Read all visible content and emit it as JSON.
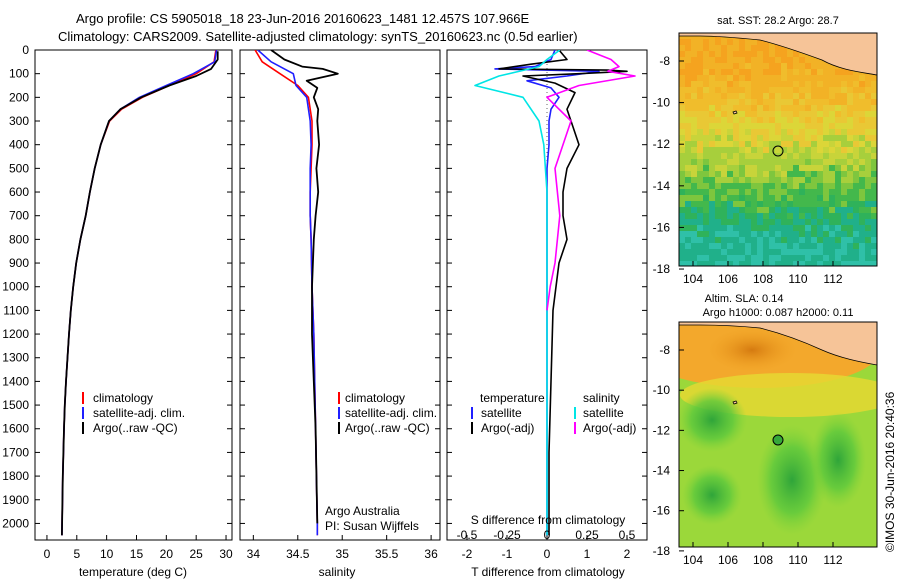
{
  "header": {
    "line1": "Argo profile: CS 5905018_18 23-Jun-2016 20160623_1481 12.457S 107.966E",
    "line2": "Climatology: CARS2009. Satellite-adjusted climatology: synTS_20160623.nc (0.5d earlier)"
  },
  "colors": {
    "climatology": "#ff0000",
    "satellite_clim": "#1f1fff",
    "argo": "#000000",
    "salinity_satellite": "#00e5e5",
    "salinity_argo": "#ff00ff",
    "land": "#f6c498"
  },
  "depth_axis": {
    "ticks": [
      "0",
      "100",
      "200",
      "300",
      "400",
      "500",
      "600",
      "700",
      "800",
      "900",
      "1000",
      "1100",
      "1200",
      "1300",
      "1400",
      "1500",
      "1600",
      "1700",
      "1800",
      "1900",
      "2000"
    ]
  },
  "temperature_panel": {
    "xlabel": "temperature (deg C)",
    "xticks": [
      "0",
      "5",
      "10",
      "15",
      "20",
      "25",
      "30"
    ],
    "legend": [
      "climatology",
      "satellite-adj. clim.",
      "Argo(..raw -QC)"
    ]
  },
  "salinity_panel": {
    "xlabel": "salinity",
    "xticks": [
      "34",
      "34.5",
      "35",
      "35.5",
      "36"
    ],
    "legend": [
      "climatology",
      "satellite-adj. clim.",
      "Argo(..raw -QC)"
    ],
    "credit1": "Argo Australia",
    "credit2": "PI: Susan Wijffels"
  },
  "difference_panel": {
    "xlabel": "T difference from climatology",
    "top_label": "S difference from climatology",
    "s_ticks": [
      "-0.5",
      "-0.25",
      "0",
      "0.25",
      "0.5"
    ],
    "t_ticks": [
      "-2",
      "-1",
      "0",
      "1",
      "2"
    ],
    "temperature_title": "temperature",
    "salinity_title": "salinity",
    "legend_satellite": "satellite",
    "legend_argo": "Argo(-adj)"
  },
  "sst_map": {
    "title": "sat. SST: 28.2 Argo: 28.7",
    "yticks": [
      "-8",
      "-10",
      "-12",
      "-14",
      "-16",
      "-18"
    ],
    "xticks": [
      "104",
      "106",
      "108",
      "110",
      "112"
    ]
  },
  "sla_map": {
    "title1": "Altim. SLA: 0.14",
    "title2": "Argo h1000: 0.087 h2000: 0.11",
    "yticks": [
      "-8",
      "-10",
      "-12",
      "-14",
      "-16",
      "-18"
    ],
    "xticks": [
      "104",
      "106",
      "108",
      "110",
      "112"
    ]
  },
  "footer": "©IMOS 30-Jun-2016 20:40:36",
  "chart_data": [
    {
      "type": "line",
      "title": "",
      "xlabel": "temperature (deg C)",
      "ylabel": "",
      "xlim": [
        -2,
        31
      ],
      "ylim": [
        2070,
        0
      ],
      "series": [
        {
          "name": "climatology",
          "x": [
            28.3,
            28.0,
            25.0,
            20.5,
            16.0,
            12.5,
            10.5,
            9.0,
            8.0,
            7.2,
            6.5,
            5.6,
            4.9,
            4.4,
            4.0,
            3.7,
            3.45,
            3.2,
            3.0,
            2.85,
            2.65,
            2.5
          ],
          "y": [
            0,
            50,
            100,
            150,
            200,
            250,
            300,
            400,
            500,
            600,
            700,
            800,
            900,
            1000,
            1100,
            1200,
            1300,
            1400,
            1500,
            1600,
            1800,
            2050
          ]
        },
        {
          "name": "satellite-adj. clim.",
          "x": [
            28.4,
            28.1,
            24.5,
            20.0,
            15.5,
            12.3,
            10.4,
            9.0,
            8.0,
            7.2,
            6.5,
            5.6,
            4.9,
            4.4,
            4.0,
            3.7,
            3.45,
            3.2,
            3.0,
            2.85,
            2.65,
            2.5
          ],
          "y": [
            0,
            50,
            100,
            150,
            200,
            250,
            300,
            400,
            500,
            600,
            700,
            800,
            900,
            1000,
            1100,
            1200,
            1300,
            1400,
            1500,
            1600,
            1800,
            2050
          ]
        },
        {
          "name": "Argo(..raw -QC)",
          "x": [
            28.6,
            28.6,
            27.5,
            25.0,
            20.5,
            15.8,
            12.3,
            10.4,
            9.0,
            8.0,
            7.2,
            6.5,
            5.6,
            4.9,
            4.4,
            4.0,
            3.7,
            3.45,
            3.2,
            3.0,
            2.85,
            2.65,
            2.5
          ],
          "y": [
            5,
            40,
            80,
            110,
            150,
            200,
            250,
            300,
            400,
            500,
            600,
            700,
            800,
            900,
            1000,
            1100,
            1200,
            1300,
            1400,
            1500,
            1600,
            1800,
            2050
          ]
        }
      ]
    },
    {
      "type": "line",
      "title": "",
      "xlabel": "salinity",
      "ylabel": "",
      "xlim": [
        33.85,
        36.1
      ],
      "ylim": [
        2070,
        0
      ],
      "series": [
        {
          "name": "climatology",
          "x": [
            34.02,
            34.1,
            34.3,
            34.5,
            34.62,
            34.66,
            34.66,
            34.65,
            34.64,
            34.64,
            34.65,
            34.66,
            34.68,
            34.69,
            34.7,
            34.71,
            34.72,
            34.72
          ],
          "y": [
            0,
            50,
            100,
            150,
            200,
            300,
            400,
            500,
            600,
            700,
            800,
            1000,
            1200,
            1400,
            1600,
            1800,
            2000,
            2050
          ]
        },
        {
          "name": "satellite-adj. clim.",
          "x": [
            34.05,
            34.2,
            34.45,
            34.48,
            34.6,
            34.64,
            34.65,
            34.64,
            34.64,
            34.64,
            34.65,
            34.66,
            34.68,
            34.69,
            34.7,
            34.71,
            34.72,
            34.72
          ],
          "y": [
            0,
            50,
            100,
            150,
            200,
            300,
            400,
            500,
            600,
            700,
            800,
            1000,
            1200,
            1400,
            1600,
            1800,
            2000,
            2050
          ]
        },
        {
          "name": "Argo(..raw -QC)",
          "x": [
            34.2,
            34.35,
            34.55,
            34.78,
            34.95,
            34.6,
            34.72,
            34.68,
            34.73,
            34.72,
            34.74,
            34.71,
            34.73,
            34.7,
            34.68,
            34.66,
            34.66,
            34.68,
            34.7,
            34.72
          ],
          "y": [
            0,
            40,
            70,
            80,
            100,
            130,
            160,
            200,
            250,
            300,
            400,
            500,
            600,
            700,
            800,
            1000,
            1200,
            1400,
            1600,
            2000
          ]
        }
      ]
    },
    {
      "type": "line",
      "title": "",
      "xlabel": "T difference from climatology",
      "ylabel": "",
      "xlim": [
        -2.5,
        2.5
      ],
      "ylim": [
        2070,
        0
      ],
      "series": [
        {
          "name": "temperature satellite",
          "x": [
            0.2,
            0.1,
            -0.3,
            -1.3,
            1.3,
            0.5,
            -0.5,
            0.1,
            0.3,
            0.1,
            0.05,
            0.05,
            0.0,
            0.0,
            0.0,
            0.0,
            0.0,
            0.0,
            0.0
          ],
          "y": [
            0,
            40,
            70,
            80,
            90,
            110,
            130,
            160,
            200,
            250,
            300,
            400,
            500,
            700,
            900,
            1200,
            1500,
            1800,
            2050
          ]
        },
        {
          "name": "temperature Argo(-adj)",
          "x": [
            0.3,
            0.5,
            -0.4,
            -1.2,
            1.5,
            2.0,
            0.8,
            -0.6,
            0.2,
            0.7,
            0.5,
            0.6,
            0.8,
            0.5,
            0.4,
            0.4,
            0.5,
            0.3,
            0.15,
            0.1,
            0.05,
            0.05
          ],
          "y": [
            0,
            40,
            60,
            80,
            85,
            90,
            100,
            110,
            140,
            180,
            250,
            300,
            400,
            500,
            600,
            700,
            800,
            900,
            1100,
            1400,
            1700,
            2050
          ]
        },
        {
          "name": "salinity satellite",
          "x": [
            0.08,
            0.0,
            -0.05,
            -0.3,
            -0.45,
            -0.15,
            -0.05,
            -0.02,
            0.0,
            0.0,
            0.0,
            0.0
          ],
          "y": [
            0,
            40,
            70,
            110,
            150,
            200,
            300,
            400,
            600,
            1000,
            1500,
            2050
          ]
        },
        {
          "name": "salinity Argo(-adj)",
          "x": [
            0.25,
            0.4,
            0.45,
            0.38,
            0.55,
            0.2,
            0.0,
            0.15,
            0.05,
            0.08,
            0.05,
            0.02,
            0.0
          ],
          "y": [
            0,
            40,
            70,
            90,
            110,
            150,
            200,
            300,
            500,
            700,
            900,
            1000,
            1100
          ]
        }
      ]
    }
  ]
}
